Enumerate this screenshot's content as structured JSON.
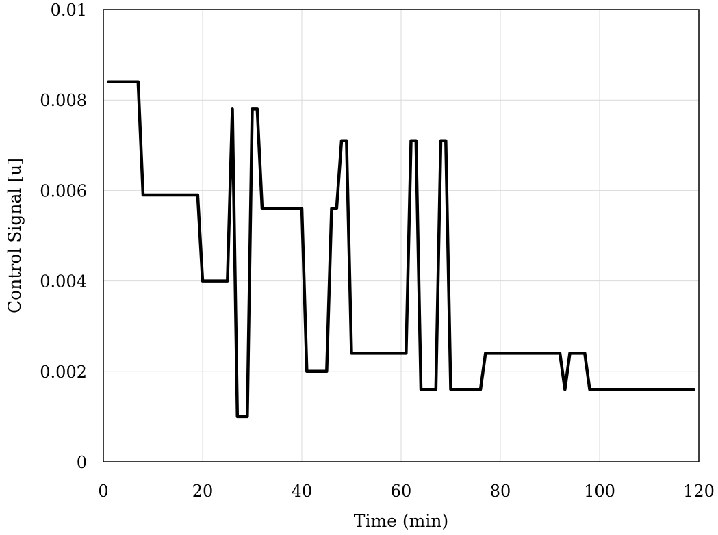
{
  "chart_data": {
    "type": "line",
    "title": "",
    "xlabel": "Time (min)",
    "ylabel": "Control Signal [u]",
    "xlim": [
      0,
      120
    ],
    "ylim": [
      0,
      0.01
    ],
    "xticks": [
      0,
      20,
      40,
      60,
      80,
      100,
      120
    ],
    "xtick_labels": [
      "0",
      "20",
      "40",
      "60",
      "80",
      "100",
      "120"
    ],
    "yticks": [
      0,
      0.002,
      0.004,
      0.006,
      0.008,
      0.01
    ],
    "ytick_labels": [
      "0",
      "0.002",
      "0.004",
      "0.006",
      "0.008",
      "0.01"
    ],
    "grid": true,
    "line_color": "#000000",
    "series": [
      {
        "x": [
          1,
          7,
          8,
          19,
          20,
          25,
          26,
          27,
          29,
          30,
          31,
          32,
          40,
          41,
          45,
          46,
          47,
          48,
          49,
          50,
          61,
          62,
          63,
          64,
          67,
          68,
          69,
          70,
          76,
          77,
          92,
          93,
          94,
          97,
          98,
          119
        ],
        "y": [
          0.0084,
          0.0084,
          0.0059,
          0.0059,
          0.004,
          0.004,
          0.0078,
          0.001,
          0.001,
          0.0078,
          0.0078,
          0.0056,
          0.0056,
          0.002,
          0.002,
          0.0056,
          0.0056,
          0.0071,
          0.0071,
          0.0024,
          0.0024,
          0.0071,
          0.0071,
          0.0016,
          0.0016,
          0.0071,
          0.0071,
          0.0016,
          0.0016,
          0.0024,
          0.0024,
          0.0016,
          0.0024,
          0.0024,
          0.0016,
          0.0016
        ]
      }
    ]
  }
}
